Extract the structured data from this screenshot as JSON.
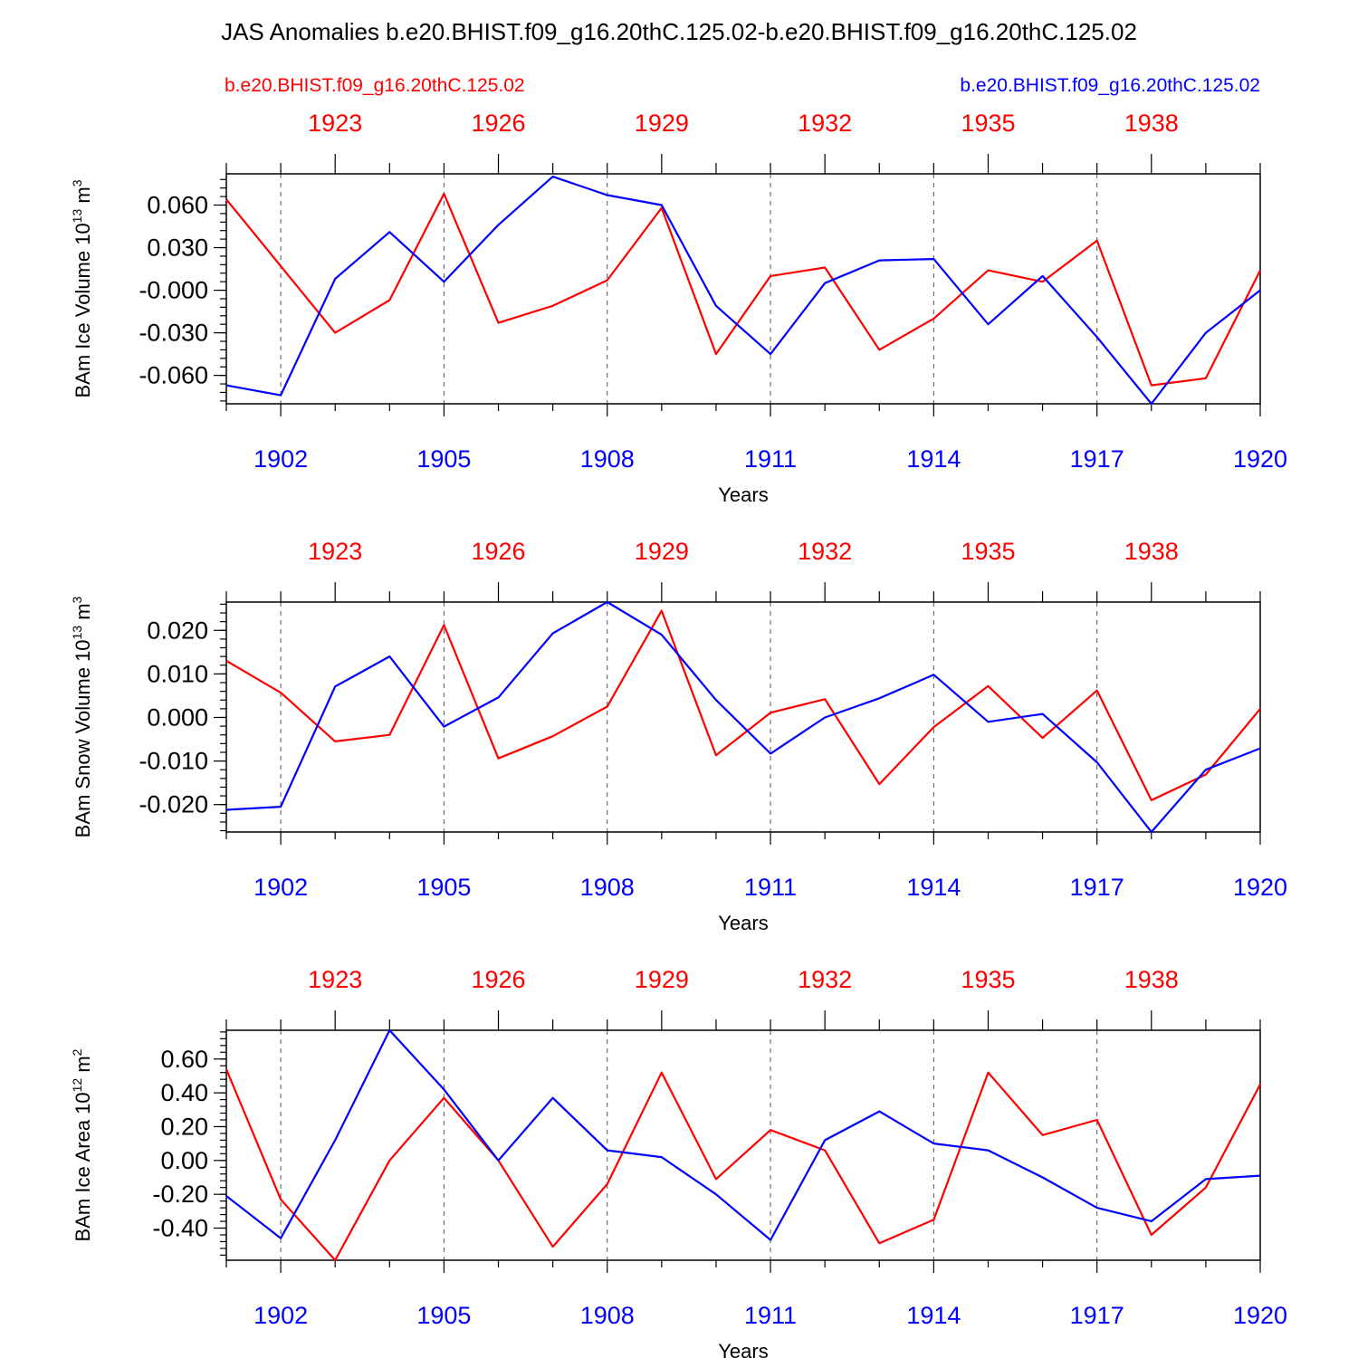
{
  "title": "JAS Anomalies b.e20.BHIST.f09_g16.20thC.125.02-b.e20.BHIST.f09_g16.20thC.125.02",
  "left_case": "b.e20.BHIST.f09_g16.20thC.125.02",
  "right_case": "b.e20.BHIST.f09_g16.20thC.125.02",
  "colors": {
    "case1": "#ff0000",
    "case2": "#0000ff"
  },
  "chart_data": [
    {
      "type": "line",
      "ylabel_main": "BAm Ice Volume 10",
      "ylabel_exp": "13",
      "ylabel_unit": " m",
      "ylabel_unit_exp": "3",
      "xlabel": "Years",
      "ylim": [
        -0.08,
        0.082
      ],
      "yticks": [
        0.06,
        0.03,
        0.0,
        -0.03,
        -0.06
      ],
      "ytick_labels": [
        "0.060",
        "0.030",
        "-0.000",
        "-0.030",
        "-0.060"
      ],
      "yminor_step": 0.006,
      "xlim": [
        1901,
        1920
      ],
      "bottom_ticks": [
        1902,
        1905,
        1908,
        1911,
        1914,
        1917,
        1920
      ],
      "bottom_tick_labels": [
        "1902",
        "1905",
        "1908",
        "1911",
        "1914",
        "1917",
        "1920"
      ],
      "top_ticks": [
        1923,
        1926,
        1929,
        1932,
        1935,
        1938
      ],
      "top_tick_labels": [
        "1923",
        "1926",
        "1929",
        "1932",
        "1935",
        "1938"
      ],
      "top_offset": 20,
      "x": [
        1901,
        1902,
        1903,
        1904,
        1905,
        1906,
        1907,
        1908,
        1909,
        1910,
        1911,
        1912,
        1913,
        1914,
        1915,
        1916,
        1917,
        1918,
        1919,
        1920
      ],
      "series": [
        {
          "color": "#ff0000",
          "values": [
            0.064,
            0.017,
            -0.03,
            -0.007,
            0.068,
            -0.023,
            -0.011,
            0.007,
            0.058,
            -0.045,
            0.01,
            0.016,
            -0.042,
            -0.02,
            0.014,
            0.006,
            0.035,
            -0.067,
            -0.062,
            0.014
          ]
        },
        {
          "color": "#0000ff",
          "values": [
            -0.067,
            -0.074,
            0.008,
            0.041,
            0.006,
            0.046,
            0.08,
            0.067,
            0.06,
            -0.011,
            -0.045,
            0.005,
            0.021,
            0.022,
            -0.024,
            0.01,
            -0.033,
            -0.08,
            -0.03,
            0.0
          ]
        }
      ]
    },
    {
      "type": "line",
      "ylabel_main": "BAm Snow Volume 10",
      "ylabel_exp": "13",
      "ylabel_unit": " m",
      "ylabel_unit_exp": "3",
      "xlabel": "Years",
      "ylim": [
        -0.0263,
        0.0265
      ],
      "yticks": [
        0.02,
        0.01,
        0.0,
        -0.01,
        -0.02
      ],
      "ytick_labels": [
        "0.020",
        "0.010",
        "0.000",
        "-0.010",
        "-0.020"
      ],
      "yminor_step": 0.002,
      "xlim": [
        1901,
        1920
      ],
      "bottom_ticks": [
        1902,
        1905,
        1908,
        1911,
        1914,
        1917,
        1920
      ],
      "bottom_tick_labels": [
        "1902",
        "1905",
        "1908",
        "1911",
        "1914",
        "1917",
        "1920"
      ],
      "top_ticks": [
        1923,
        1926,
        1929,
        1932,
        1935,
        1938
      ],
      "top_tick_labels": [
        "1923",
        "1926",
        "1929",
        "1932",
        "1935",
        "1938"
      ],
      "top_offset": 20,
      "x": [
        1901,
        1902,
        1903,
        1904,
        1905,
        1906,
        1907,
        1908,
        1909,
        1910,
        1911,
        1912,
        1913,
        1914,
        1915,
        1916,
        1917,
        1918,
        1919,
        1920
      ],
      "series": [
        {
          "color": "#ff0000",
          "values": [
            0.013,
            0.0057,
            -0.0055,
            -0.004,
            0.0212,
            -0.0094,
            -0.0043,
            0.0025,
            0.0245,
            -0.0087,
            0.0011,
            0.0042,
            -0.0153,
            -0.0022,
            0.0072,
            -0.0047,
            0.0062,
            -0.019,
            -0.0131,
            0.002
          ]
        },
        {
          "color": "#0000ff",
          "values": [
            -0.0212,
            -0.0205,
            0.0071,
            0.014,
            -0.0021,
            0.0046,
            0.0193,
            0.0265,
            0.019,
            0.004,
            -0.0083,
            0.0,
            0.0044,
            0.0098,
            -0.001,
            0.0008,
            -0.0103,
            -0.0263,
            -0.012,
            -0.0071
          ]
        }
      ]
    },
    {
      "type": "line",
      "ylabel_main": "BAm Ice Area 10",
      "ylabel_exp": "12",
      "ylabel_unit": " m",
      "ylabel_unit_exp": "2",
      "xlabel": "Years",
      "ylim": [
        -0.59,
        0.77
      ],
      "yticks": [
        0.6,
        0.4,
        0.2,
        0.0,
        -0.2,
        -0.4
      ],
      "ytick_labels": [
        "0.60",
        "0.40",
        "0.20",
        "0.00",
        "-0.20",
        "-0.40"
      ],
      "yminor_step": 0.04,
      "xlim": [
        1901,
        1920
      ],
      "bottom_ticks": [
        1902,
        1905,
        1908,
        1911,
        1914,
        1917,
        1920
      ],
      "bottom_tick_labels": [
        "1902",
        "1905",
        "1908",
        "1911",
        "1914",
        "1917",
        "1920"
      ],
      "top_ticks": [
        1923,
        1926,
        1929,
        1932,
        1935,
        1938
      ],
      "top_tick_labels": [
        "1923",
        "1926",
        "1929",
        "1932",
        "1935",
        "1938"
      ],
      "top_offset": 20,
      "x": [
        1901,
        1902,
        1903,
        1904,
        1905,
        1906,
        1907,
        1908,
        1909,
        1910,
        1911,
        1912,
        1913,
        1914,
        1915,
        1916,
        1917,
        1918,
        1919,
        1920
      ],
      "series": [
        {
          "color": "#ff0000",
          "values": [
            0.54,
            -0.23,
            -0.59,
            0.0,
            0.37,
            0.0,
            -0.51,
            -0.14,
            0.52,
            -0.11,
            0.18,
            0.06,
            -0.49,
            -0.35,
            0.52,
            0.15,
            0.24,
            -0.44,
            -0.16,
            0.45
          ]
        },
        {
          "color": "#0000ff",
          "values": [
            -0.21,
            -0.46,
            0.12,
            0.77,
            0.42,
            0.0,
            0.37,
            0.06,
            0.02,
            -0.2,
            -0.47,
            0.12,
            0.29,
            0.1,
            0.06,
            -0.1,
            -0.28,
            -0.36,
            -0.11,
            -0.09
          ]
        }
      ]
    }
  ]
}
